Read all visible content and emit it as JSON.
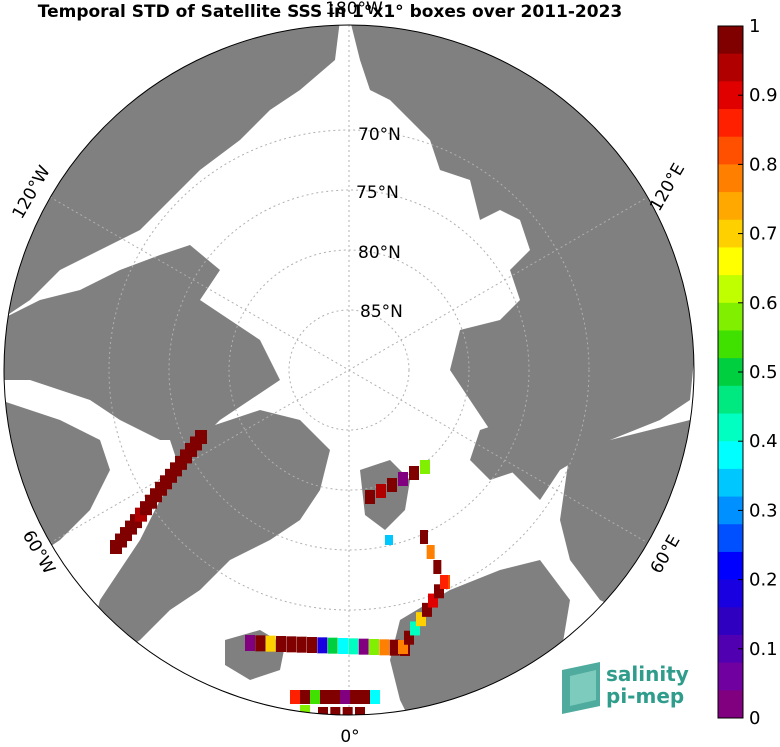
{
  "title": "Temporal STD of Satellite SSS in 1°x1° boxes over 2011-2023",
  "meridian_labels": {
    "top": "180°W",
    "bottom": "0°",
    "left_upper": "120°W",
    "left_lower": "60°W",
    "right_upper": "120°E",
    "right_lower": "60°E"
  },
  "parallel_labels": [
    "70°N",
    "75°N",
    "80°N",
    "85°N"
  ],
  "colorbar": {
    "min": 0,
    "max": 1,
    "tick_labels": [
      "1",
      "0.9",
      "0.8",
      "0.7",
      "0.6",
      "0.5",
      "0.4",
      "0.3",
      "0.2",
      "0.1",
      "0"
    ],
    "colors": [
      "#800000",
      "#b00000",
      "#e00000",
      "#ff2000",
      "#ff5000",
      "#ff8000",
      "#ffa800",
      "#ffd000",
      "#ffff00",
      "#c0ff00",
      "#80f000",
      "#40e000",
      "#00d040",
      "#00e880",
      "#00ffc0",
      "#00ffff",
      "#00c8ff",
      "#0090ff",
      "#0050ff",
      "#0000ff",
      "#1800e0",
      "#3000c0",
      "#5000b0",
      "#7000a0",
      "#800080"
    ]
  },
  "logo": {
    "line1": "salinity",
    "line2": "pi-mep"
  },
  "colors": {
    "land": "#808080",
    "ocean": "#ffffff",
    "grid": "#b0b0b0",
    "accent": "#2f9c8c"
  }
}
